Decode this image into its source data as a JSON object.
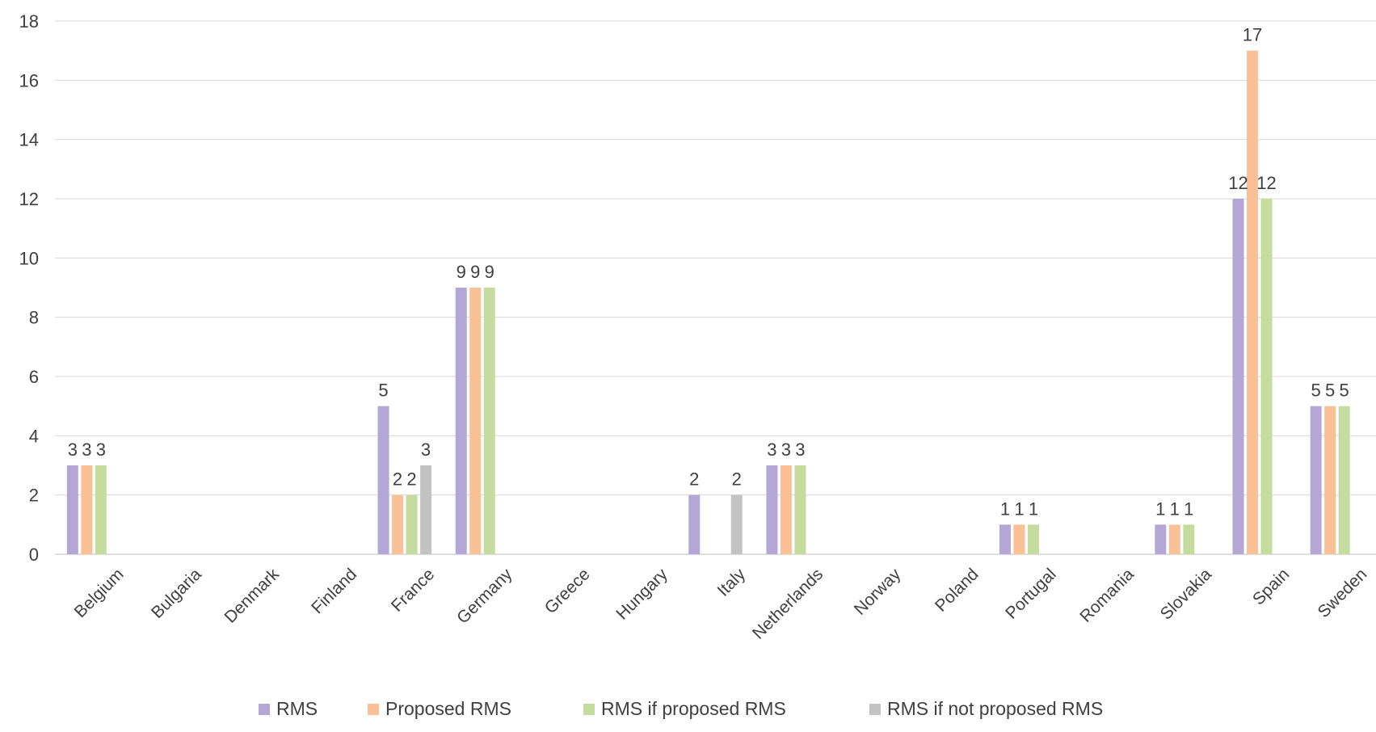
{
  "chart_data": {
    "type": "bar",
    "title": "",
    "xlabel": "",
    "ylabel": "",
    "ylim": [
      0,
      18
    ],
    "yticks": [
      0,
      2,
      4,
      6,
      8,
      10,
      12,
      14,
      16,
      18
    ],
    "grid": true,
    "legend_position": "bottom",
    "categories": [
      "Belgium",
      "Bulgaria",
      "Denmark",
      "Finland",
      "France",
      "Germany",
      "Greece",
      "Hungary",
      "Italy",
      "Netherlands",
      "Norway",
      "Poland",
      "Portugal",
      "Romania",
      "Slovakia",
      "Spain",
      "Sweden"
    ],
    "series": [
      {
        "name": "RMS",
        "color": "#b4a7d6",
        "values": [
          3,
          null,
          null,
          null,
          5,
          9,
          null,
          null,
          2,
          3,
          null,
          null,
          1,
          null,
          1,
          12,
          5
        ]
      },
      {
        "name": "Proposed RMS",
        "color": "#f9c195",
        "values": [
          3,
          null,
          null,
          null,
          2,
          9,
          null,
          null,
          null,
          3,
          null,
          null,
          1,
          null,
          1,
          17,
          5
        ]
      },
      {
        "name": "RMS if proposed RMS",
        "color": "#c5dc9e",
        "values": [
          3,
          null,
          null,
          null,
          2,
          9,
          null,
          null,
          null,
          3,
          null,
          null,
          1,
          null,
          1,
          12,
          5
        ]
      },
      {
        "name": "RMS if not proposed RMS",
        "color": "#c3c3c3",
        "values": [
          null,
          null,
          null,
          null,
          3,
          null,
          null,
          null,
          2,
          null,
          null,
          null,
          null,
          null,
          null,
          null,
          null
        ]
      }
    ]
  }
}
